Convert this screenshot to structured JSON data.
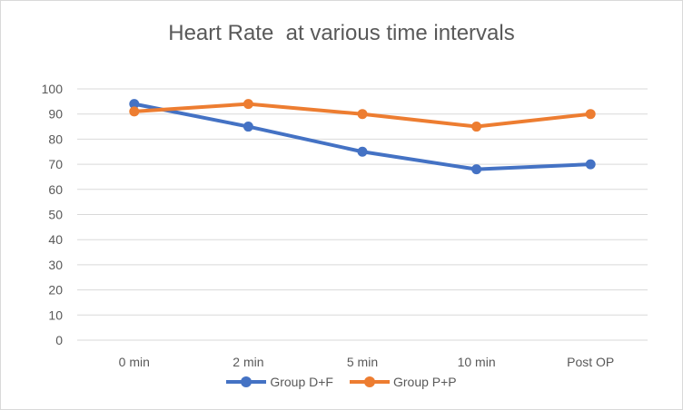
{
  "chart_data": {
    "type": "line",
    "title": "Heart Rate  at various time intervals",
    "xlabel": "",
    "ylabel": "",
    "categories": [
      "0 min",
      "2 min",
      "5 min",
      "10 min",
      "Post OP"
    ],
    "ylim": [
      0,
      100
    ],
    "yticks": [
      0,
      10,
      20,
      30,
      40,
      50,
      60,
      70,
      80,
      90,
      100
    ],
    "grid": true,
    "legend_position": "bottom",
    "series": [
      {
        "name": "Group D+F",
        "color": "#4472c4",
        "values": [
          94,
          85,
          75,
          68,
          70
        ]
      },
      {
        "name": "Group P+P",
        "color": "#ed7d31",
        "values": [
          91,
          94,
          90,
          85,
          90
        ]
      }
    ]
  }
}
